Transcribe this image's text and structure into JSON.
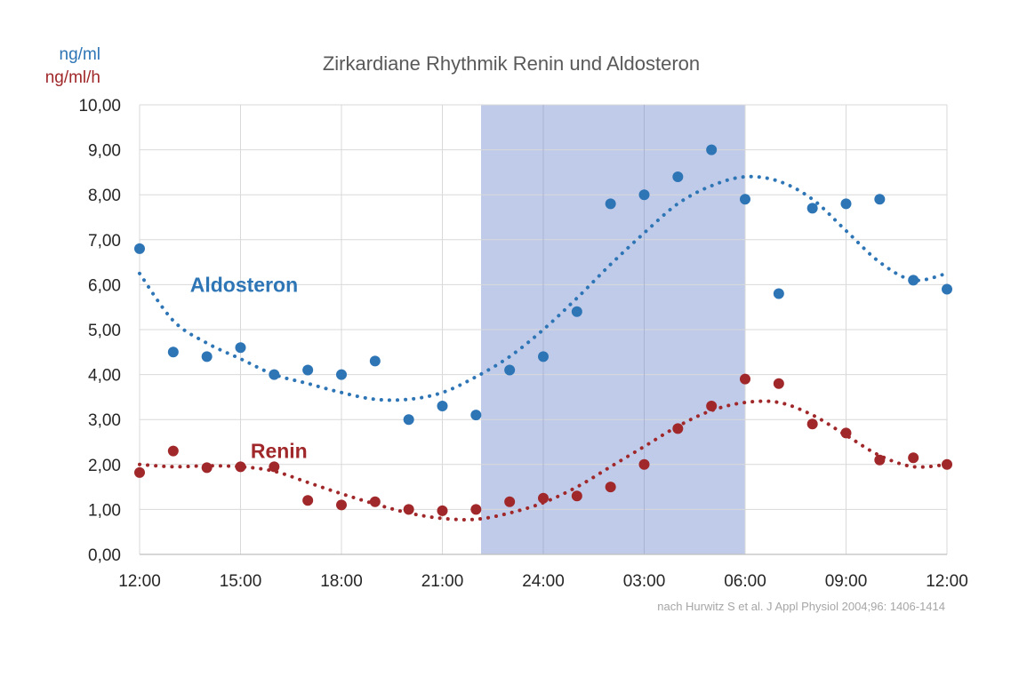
{
  "chart_data": {
    "type": "scatter",
    "title": "Zirkardiane Rhythmik Renin und Aldosteron",
    "ylabel_lines": [
      {
        "text": "ng/ml",
        "color": "#2e75b6"
      },
      {
        "text": "ng/ml/h",
        "color": "#a0282a"
      }
    ],
    "source": "nach Hurwitz S et al. J Appl Physiol 2004;96: 1406-1414",
    "xlim": [
      12,
      36
    ],
    "ylim": [
      0,
      10
    ],
    "x_ticks": [
      {
        "value": 12,
        "label": "12:00"
      },
      {
        "value": 15,
        "label": "15:00"
      },
      {
        "value": 18,
        "label": "18:00"
      },
      {
        "value": 21,
        "label": "21:00"
      },
      {
        "value": 24,
        "label": "24:00"
      },
      {
        "value": 27,
        "label": "03:00"
      },
      {
        "value": 30,
        "label": "06:00"
      },
      {
        "value": 33,
        "label": "09:00"
      },
      {
        "value": 36,
        "label": "12:00"
      }
    ],
    "y_ticks": [
      {
        "value": 0,
        "label": "0,00"
      },
      {
        "value": 1,
        "label": "1,00"
      },
      {
        "value": 2,
        "label": "2,00"
      },
      {
        "value": 3,
        "label": "3,00"
      },
      {
        "value": 4,
        "label": "4,00"
      },
      {
        "value": 5,
        "label": "5,00"
      },
      {
        "value": 6,
        "label": "6,00"
      },
      {
        "value": 7,
        "label": "7,00"
      },
      {
        "value": 8,
        "label": "8,00"
      },
      {
        "value": 9,
        "label": "9,00"
      },
      {
        "value": 10,
        "label": "10,00"
      }
    ],
    "grid": true,
    "night_band": {
      "from": 22.15,
      "to": 30,
      "color": "#c0cbe9"
    },
    "series": [
      {
        "name": "Aldosteron",
        "color": "#2e75b6",
        "label_anchor": {
          "x": 13.5,
          "y": 6.0
        },
        "x": [
          12,
          13,
          14,
          15,
          16,
          17,
          18,
          19,
          20,
          21,
          22,
          23,
          24,
          25,
          26,
          27,
          28,
          29,
          30,
          31,
          32,
          33,
          34,
          35,
          36
        ],
        "values": [
          6.8,
          4.5,
          4.4,
          4.6,
          4.0,
          4.1,
          4.0,
          4.3,
          3.0,
          3.3,
          3.1,
          4.1,
          4.4,
          5.4,
          7.8,
          8.0,
          8.4,
          9.0,
          7.9,
          5.8,
          7.7,
          7.8,
          7.9,
          6.1,
          5.9
        ],
        "trend_x": [
          12,
          13,
          14,
          15,
          16,
          17,
          18,
          19,
          20,
          21,
          22,
          23,
          24,
          25,
          26,
          27,
          28,
          29,
          30,
          31,
          32,
          33,
          34,
          35,
          36
        ],
        "trend_y": [
          6.25,
          5.2,
          4.7,
          4.35,
          4.0,
          3.8,
          3.6,
          3.45,
          3.45,
          3.6,
          3.95,
          4.4,
          5.0,
          5.7,
          6.45,
          7.15,
          7.8,
          8.2,
          8.4,
          8.3,
          7.9,
          7.2,
          6.5,
          6.1,
          6.25
        ]
      },
      {
        "name": "Renin",
        "color": "#a0282a",
        "label_anchor": {
          "x": 15.3,
          "y": 2.3
        },
        "x": [
          12,
          13,
          14,
          15,
          16,
          17,
          18,
          19,
          20,
          21,
          22,
          23,
          24,
          25,
          26,
          27,
          28,
          29,
          30,
          31,
          32,
          33,
          34,
          35,
          36
        ],
        "values": [
          1.82,
          2.3,
          1.93,
          1.95,
          1.95,
          1.2,
          1.1,
          1.17,
          1.0,
          0.97,
          1.0,
          1.17,
          1.25,
          1.3,
          1.5,
          2.0,
          2.8,
          3.3,
          3.9,
          3.8,
          2.9,
          2.7,
          2.1,
          2.15,
          2.0
        ],
        "trend_x": [
          12,
          13,
          14,
          15,
          16,
          17,
          18,
          19,
          20,
          21,
          22,
          23,
          24,
          25,
          26,
          27,
          28,
          29,
          30,
          31,
          32,
          33,
          34,
          35,
          36
        ],
        "trend_y": [
          2.0,
          1.95,
          1.97,
          1.95,
          1.85,
          1.6,
          1.35,
          1.12,
          0.92,
          0.8,
          0.78,
          0.92,
          1.15,
          1.5,
          1.95,
          2.4,
          2.85,
          3.2,
          3.38,
          3.38,
          3.1,
          2.65,
          2.2,
          1.95,
          2.0
        ]
      }
    ]
  }
}
